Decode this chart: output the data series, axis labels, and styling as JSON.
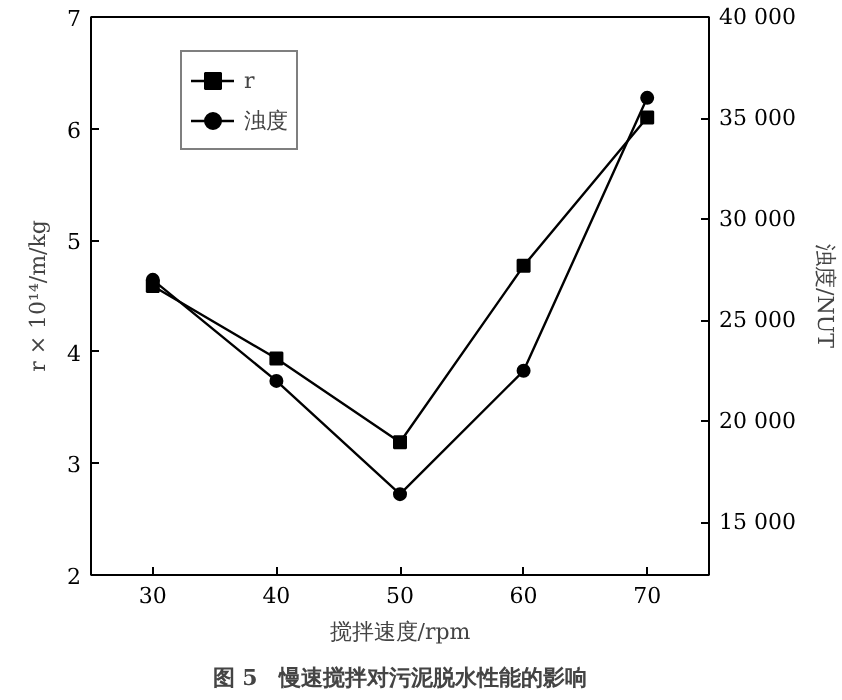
{
  "chart_data": {
    "type": "line",
    "xlabel": "搅拌速度/rpm",
    "ylabel": "r × 10¹⁴/m/kg",
    "y2label": "浊度/NUT",
    "annotations": [
      "图 5　慢速搅拌对污泥脱水性能的影响"
    ],
    "x": [
      30,
      40,
      50,
      60,
      70
    ],
    "series": [
      {
        "name": "r",
        "color": "#000000",
        "marker": "square",
        "values": [
          4.59,
          3.94,
          3.19,
          4.77,
          6.1
        ]
      },
      {
        "name": "浊度",
        "color": "#000000",
        "marker": "circle",
        "axis": "y2",
        "values": [
          27000,
          22000,
          16400,
          22500,
          36000
        ]
      }
    ],
    "xlim": [
      25,
      75
    ],
    "xticks": [
      30,
      40,
      50,
      60,
      70
    ],
    "ylim": [
      2,
      7
    ],
    "yticks": [
      2,
      3,
      4,
      5,
      6,
      7
    ],
    "y2lim": [
      12400,
      40000
    ],
    "y2ticks": [
      {
        "value": 15000,
        "label": "15 000"
      },
      {
        "value": 20000,
        "label": "20 000"
      },
      {
        "value": 25000,
        "label": "25 000"
      },
      {
        "value": 30000,
        "label": "30 000"
      },
      {
        "value": 35000,
        "label": "35 000"
      },
      {
        "value": 40000,
        "label": "40 000"
      }
    ],
    "grid": false,
    "legend": "top left",
    "line_style": "solid"
  }
}
